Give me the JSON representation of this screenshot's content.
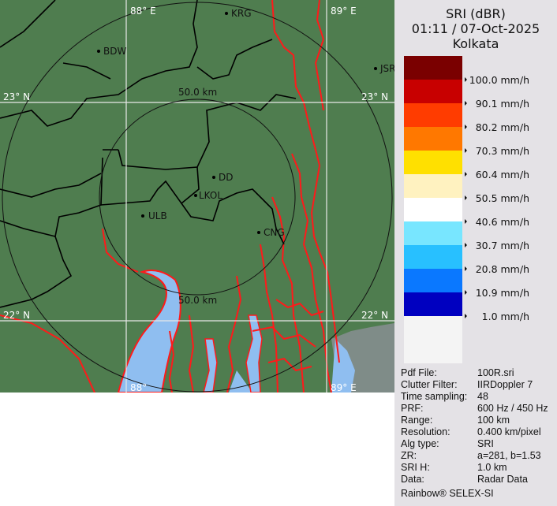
{
  "product": {
    "title": "SRI (dBR)",
    "datetime": "01:11 / 07-Oct-2025",
    "site": "Kolkata"
  },
  "legend": {
    "unit": "mm/h",
    "entries": [
      {
        "label": "100.0 mm/h",
        "color": "#7a0000"
      },
      {
        "label": "90.1 mm/h",
        "color": "#c80000"
      },
      {
        "label": "80.2 mm/h",
        "color": "#ff3c00"
      },
      {
        "label": "70.3 mm/h",
        "color": "#ff7800"
      },
      {
        "label": "60.4 mm/h",
        "color": "#ffe000"
      },
      {
        "label": "50.5 mm/h",
        "color": "#fff2c0"
      },
      {
        "label": "40.6 mm/h",
        "color": "#ffffff"
      },
      {
        "label": "30.7 mm/h",
        "color": "#78e6ff"
      },
      {
        "label": "20.8 mm/h",
        "color": "#28c0ff"
      },
      {
        "label": "10.9 mm/h",
        "color": "#0a78ff"
      },
      {
        "label": "1.0 mm/h",
        "color": "#0000c0"
      }
    ],
    "below_min_color": "#f4f4f4"
  },
  "info": [
    {
      "key": "Pdf File:",
      "value": "100R.sri"
    },
    {
      "key": "Clutter Filter:",
      "value": "IIRDoppler 7"
    },
    {
      "key": "Time sampling:",
      "value": "48"
    },
    {
      "key": "PRF:",
      "value": "600 Hz / 450 Hz"
    },
    {
      "key": "Range:",
      "value": "100 km"
    },
    {
      "key": "Resolution:",
      "value": "0.400 km/pixel"
    },
    {
      "key": "Alg type:",
      "value": "SRI"
    },
    {
      "key": "ZR:",
      "value": "a=281, b=1.53"
    },
    {
      "key": "SRI H:",
      "value": "1.0 km"
    },
    {
      "key": "Data:",
      "value": "Radar Data"
    }
  ],
  "footer": "Rainbow® SELEX-SI",
  "map": {
    "grid": {
      "lon_top_left": "88° E",
      "lon_top_right": "89° E",
      "lat_upper_left": "23° N",
      "lat_upper_right": "23° N",
      "lat_lower_left": "22° N",
      "lat_lower_right": "22° N",
      "lon_bottom_left": "88°",
      "lon_bottom_right": "89° E"
    },
    "range_rings": {
      "inner_top": "50.0 km",
      "inner_bottom": "50.0 km"
    },
    "cities": [
      {
        "code": "KRG"
      },
      {
        "code": "BDW"
      },
      {
        "code": "JSR"
      },
      {
        "code": "DD"
      },
      {
        "code": "LKOL"
      },
      {
        "code": "ULB"
      },
      {
        "code": "CNG"
      }
    ],
    "colors": {
      "land": "#4f7d4f",
      "water": "#8fbef0",
      "rivers": "#ff1a1a",
      "borders": "#000000",
      "grid": "#e8e8e8"
    }
  }
}
